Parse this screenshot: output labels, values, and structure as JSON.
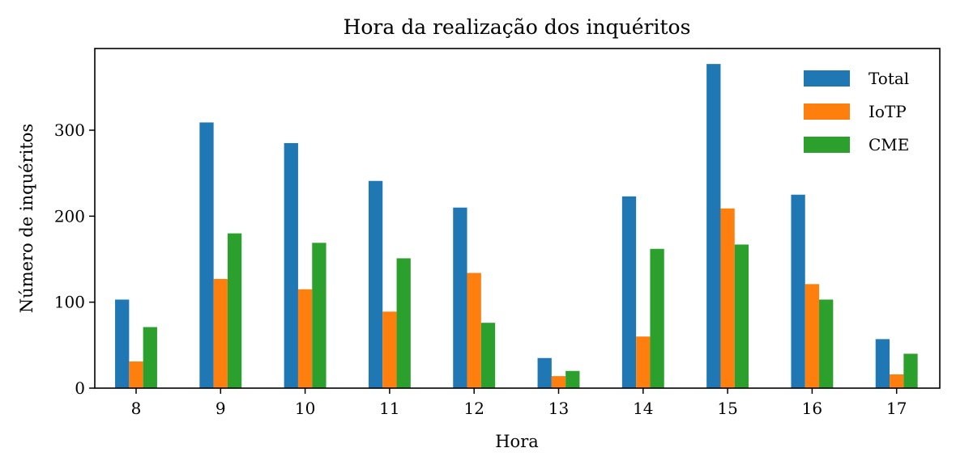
{
  "chart_data": {
    "type": "bar",
    "title": "Hora da realização dos inquéritos",
    "xlabel": "Hora",
    "ylabel": "Número de inquéritos",
    "categories": [
      "8",
      "9",
      "10",
      "11",
      "12",
      "13",
      "14",
      "15",
      "16",
      "17"
    ],
    "series": [
      {
        "name": "Total",
        "color": "#1f77b4",
        "values": [
          103,
          309,
          285,
          241,
          210,
          35,
          223,
          377,
          225,
          57
        ]
      },
      {
        "name": "IoTP",
        "color": "#ff7f0e",
        "values": [
          31,
          127,
          115,
          89,
          134,
          14,
          60,
          209,
          121,
          16
        ]
      },
      {
        "name": "CME",
        "color": "#2ca02c",
        "values": [
          71,
          180,
          169,
          151,
          76,
          20,
          162,
          167,
          103,
          40
        ]
      }
    ],
    "ylim": [
      0,
      395
    ],
    "yticks": [
      0,
      100,
      200,
      300
    ],
    "grid": false,
    "legend_position": "top-right"
  }
}
